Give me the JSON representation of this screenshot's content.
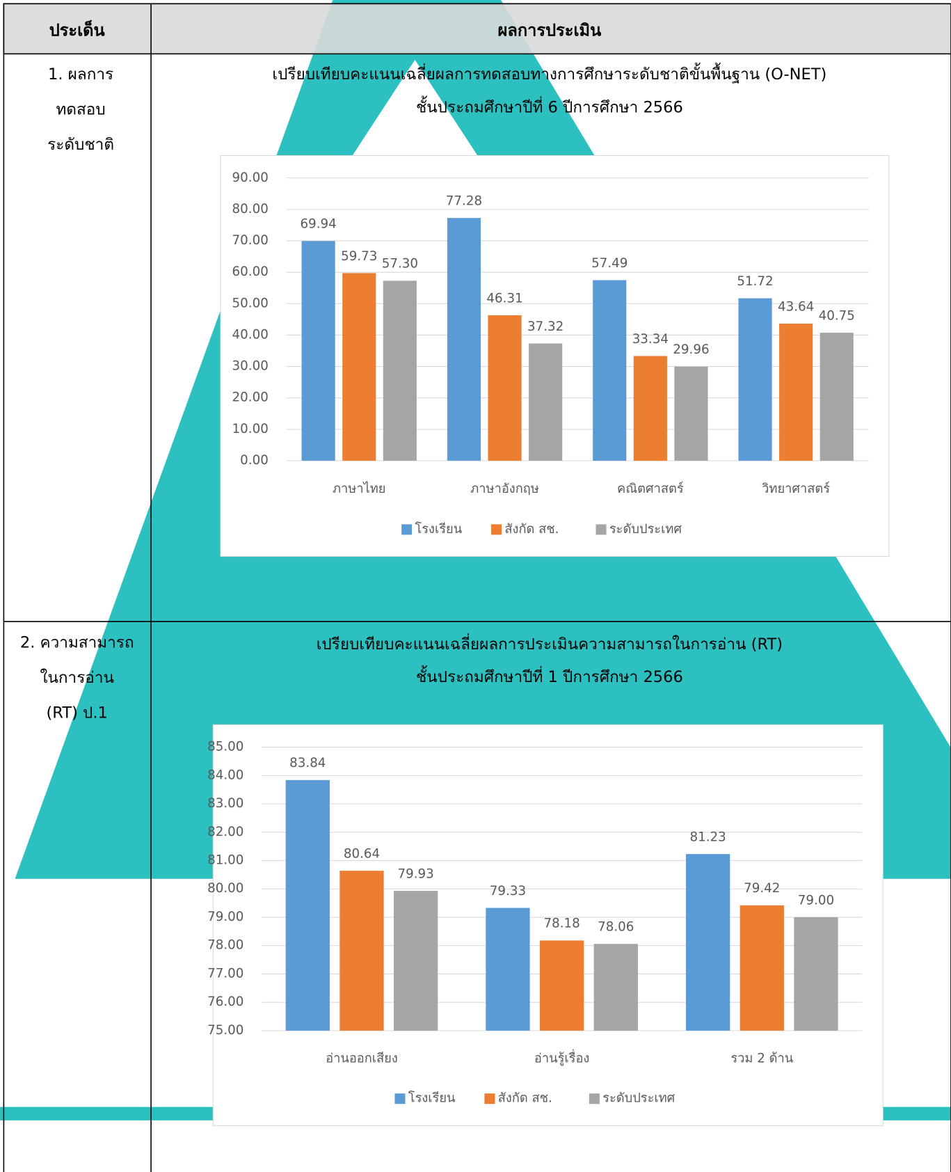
{
  "table": {
    "headers": [
      "ประเด็น",
      "ผลการประเมิน"
    ],
    "rows": [
      {
        "topic": [
          "1. ผลการ",
          "ทดสอบ",
          "ระดับชาติ"
        ]
      },
      {
        "topic": [
          "2. ความสามารถ",
          "ในการอ่าน",
          "(RT) ป.1"
        ]
      }
    ]
  },
  "chart_data": [
    {
      "type": "bar",
      "title": "เปรียบเทียบคะแนนเฉลี่ยผลการทดสอบทางการศึกษาระดับชาติขั้นพื้นฐาน (O-NET)",
      "subtitle": "ชั้นประถมศึกษาปีที่ 6 ปีการศึกษา 2566",
      "categories": [
        "ภาษาไทย",
        "ภาษาอังกฤษ",
        "คณิตศาสตร์",
        "วิทยาศาสตร์"
      ],
      "series": [
        {
          "name": "โรงเรียน",
          "color": "#5b9bd5",
          "values": [
            69.94,
            77.28,
            57.49,
            51.72
          ],
          "value_labels": [
            "69.94",
            "77.28",
            "57.49",
            "51.72"
          ]
        },
        {
          "name": "สังกัด สช.",
          "color": "#ed7d31",
          "values": [
            59.73,
            46.31,
            33.34,
            43.64
          ],
          "value_labels": [
            "59.73",
            "46.31",
            "33.34",
            "43.64"
          ]
        },
        {
          "name": "ระดับประเทศ",
          "color": "#a5a5a5",
          "values": [
            57.3,
            37.32,
            29.96,
            40.75
          ],
          "value_labels": [
            "57.30",
            "37.32",
            "29.96",
            "40.75"
          ]
        }
      ],
      "ylim": [
        0,
        90
      ],
      "yticks": [
        {
          "value": 0,
          "label": "0.00"
        },
        {
          "value": 10,
          "label": "10.00"
        },
        {
          "value": 20,
          "label": "20.00"
        },
        {
          "value": 30,
          "label": "30.00"
        },
        {
          "value": 40,
          "label": "40.00"
        },
        {
          "value": 50,
          "label": "50.00"
        },
        {
          "value": 60,
          "label": "60.00"
        },
        {
          "value": 70,
          "label": "70.00"
        },
        {
          "value": 80,
          "label": "80.00"
        },
        {
          "value": 90,
          "label": "90.00"
        }
      ],
      "grid": true,
      "legend": "bottom"
    },
    {
      "type": "bar",
      "title": "เปรียบเทียบคะแนนเฉลี่ยผลการประเมินความสามารถในการอ่าน (RT)",
      "subtitle": "ชั้นประถมศึกษาปีที่ 1 ปีการศึกษา 2566",
      "categories": [
        "อ่านออกเสียง",
        "อ่านรู้เรื่อง",
        "รวม 2 ด้าน"
      ],
      "series": [
        {
          "name": "โรงเรียน",
          "color": "#5b9bd5",
          "values": [
            83.84,
            79.33,
            81.23
          ],
          "value_labels": [
            "83.84",
            "79.33",
            "81.23"
          ]
        },
        {
          "name": "สังกัด สช.",
          "color": "#ed7d31",
          "values": [
            80.64,
            78.18,
            79.42
          ],
          "value_labels": [
            "80.64",
            "78.18",
            "79.42"
          ]
        },
        {
          "name": "ระดับประเทศ",
          "color": "#a5a5a5",
          "values": [
            79.93,
            78.06,
            79.0
          ],
          "value_labels": [
            "79.93",
            "78.06",
            "79.00"
          ]
        }
      ],
      "ylim": [
        75,
        85
      ],
      "yticks": [
        {
          "value": 75,
          "label": "75.00"
        },
        {
          "value": 76,
          "label": "76.00"
        },
        {
          "value": 77,
          "label": "77.00"
        },
        {
          "value": 78,
          "label": "78.00"
        },
        {
          "value": 79,
          "label": "79.00"
        },
        {
          "value": 80,
          "label": "80.00"
        },
        {
          "value": 81,
          "label": "81.00"
        },
        {
          "value": 82,
          "label": "82.00"
        },
        {
          "value": 83,
          "label": "83.00"
        },
        {
          "value": 84,
          "label": "84.00"
        },
        {
          "value": 85,
          "label": "85.00"
        }
      ],
      "grid": true,
      "legend": "bottom"
    }
  ]
}
